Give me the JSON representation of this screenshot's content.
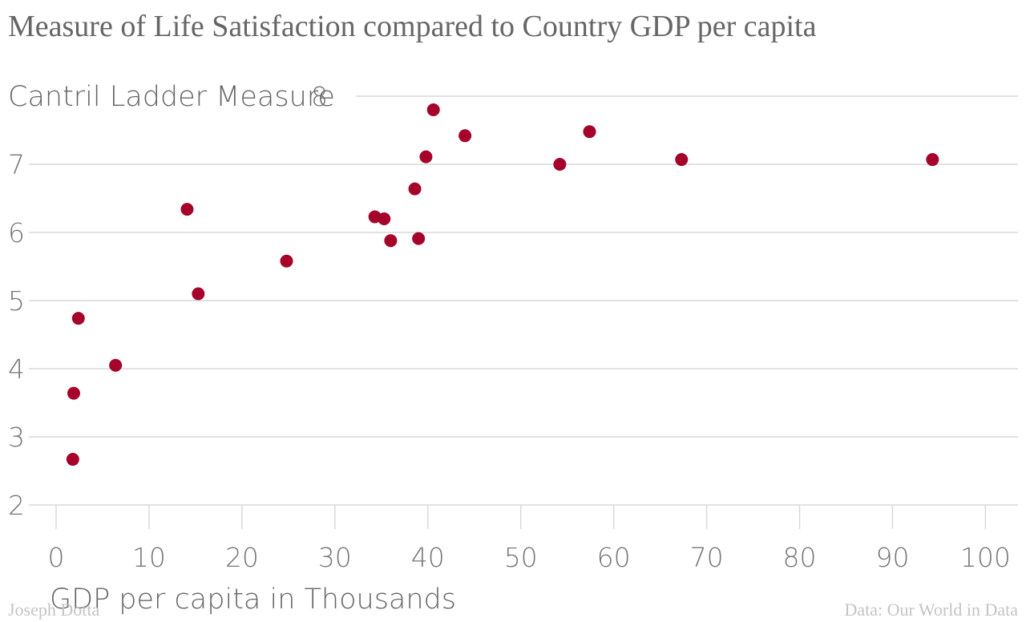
{
  "chart_data": {
    "type": "scatter",
    "title": "Measure of Life Satisfaction compared to Country GDP per capita",
    "ylabel": "Cantril Ladder Measure",
    "xlabel": "GDP per capita in Thousands",
    "x_ticks": [
      "0",
      "10",
      "20",
      "30",
      "40",
      "50",
      "60",
      "70",
      "80",
      "90",
      "100"
    ],
    "y_ticks": [
      "2",
      "3",
      "4",
      "5",
      "6",
      "7",
      "8"
    ],
    "xlim": [
      -5,
      103.5
    ],
    "ylim": [
      2,
      8
    ],
    "grid": true,
    "point_color": "#a6032a",
    "points": [
      {
        "x": 1.8,
        "y": 2.67
      },
      {
        "x": 1.9,
        "y": 3.64
      },
      {
        "x": 2.4,
        "y": 4.74
      },
      {
        "x": 6.4,
        "y": 4.05
      },
      {
        "x": 14.1,
        "y": 6.34
      },
      {
        "x": 15.3,
        "y": 5.1
      },
      {
        "x": 24.8,
        "y": 5.58
      },
      {
        "x": 34.3,
        "y": 6.23
      },
      {
        "x": 35.3,
        "y": 6.2
      },
      {
        "x": 36.0,
        "y": 5.88
      },
      {
        "x": 38.6,
        "y": 6.64
      },
      {
        "x": 39.0,
        "y": 5.91
      },
      {
        "x": 39.8,
        "y": 7.11
      },
      {
        "x": 40.6,
        "y": 7.8
      },
      {
        "x": 44.0,
        "y": 7.42
      },
      {
        "x": 54.2,
        "y": 7.0
      },
      {
        "x": 57.4,
        "y": 7.48
      },
      {
        "x": 67.3,
        "y": 7.07
      },
      {
        "x": 94.3,
        "y": 7.07
      }
    ]
  },
  "footer": {
    "credit": "Joseph Dotta",
    "source": "Data: Our World in Data"
  }
}
